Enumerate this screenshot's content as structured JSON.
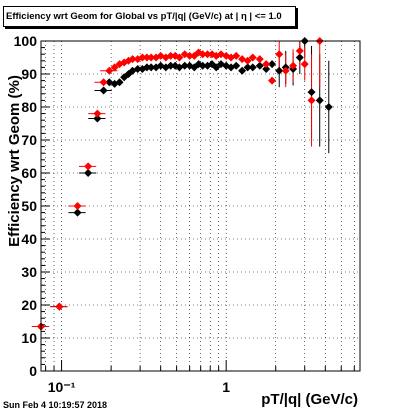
{
  "chart_data": {
    "type": "scatter",
    "title": "Efficiency wrt Geom for Global vs pT/|q| (GeV/c) at | η | <= 1.0",
    "xlabel": "pT/|q| (GeV/c)",
    "ylabel": "Efficiency wrt Geom (%)",
    "xscale": "log",
    "xlim": [
      0.075,
      6.5
    ],
    "ylim": [
      0,
      100
    ],
    "x_tick_labels": [
      "10⁻¹",
      "1"
    ],
    "y_tick_labels": [
      "0",
      "10",
      "20",
      "30",
      "40",
      "50",
      "60",
      "70",
      "80",
      "90",
      "100"
    ],
    "grid": true,
    "series": [
      {
        "color": "#000000",
        "marker": "diamond",
        "points": [
          [
            0.075,
            13.5
          ],
          [
            0.097,
            19.5
          ],
          [
            0.125,
            48
          ],
          [
            0.145,
            60
          ],
          [
            0.165,
            76.5
          ],
          [
            0.18,
            85
          ],
          [
            0.195,
            87.5
          ],
          [
            0.21,
            87
          ],
          [
            0.225,
            87.5
          ],
          [
            0.24,
            89
          ],
          [
            0.255,
            90
          ],
          [
            0.27,
            91
          ],
          [
            0.29,
            91.5
          ],
          [
            0.31,
            91.5
          ],
          [
            0.33,
            92
          ],
          [
            0.35,
            92
          ],
          [
            0.375,
            92
          ],
          [
            0.4,
            92.5
          ],
          [
            0.43,
            92
          ],
          [
            0.46,
            92.5
          ],
          [
            0.49,
            92.5
          ],
          [
            0.52,
            92
          ],
          [
            0.56,
            92.5
          ],
          [
            0.6,
            92.5
          ],
          [
            0.64,
            92
          ],
          [
            0.68,
            93
          ],
          [
            0.72,
            92.5
          ],
          [
            0.77,
            92.5
          ],
          [
            0.82,
            93
          ],
          [
            0.87,
            92
          ],
          [
            0.93,
            93
          ],
          [
            1.0,
            92.5
          ],
          [
            1.07,
            92
          ],
          [
            1.15,
            92.5
          ],
          [
            1.25,
            91
          ],
          [
            1.35,
            92
          ],
          [
            1.45,
            92
          ],
          [
            1.6,
            92.5
          ],
          [
            1.75,
            91.5
          ],
          [
            1.9,
            93
          ],
          [
            2.1,
            91
          ],
          [
            2.3,
            92
          ],
          [
            2.55,
            91.5
          ],
          [
            2.8,
            95
          ],
          [
            3.0,
            100
          ],
          [
            3.3,
            84.5
          ],
          [
            3.7,
            82
          ],
          [
            4.2,
            80
          ]
        ]
      },
      {
        "color": "#ff0000",
        "marker": "diamond",
        "points": [
          [
            0.075,
            13.5
          ],
          [
            0.097,
            19.5
          ],
          [
            0.125,
            50
          ],
          [
            0.145,
            62
          ],
          [
            0.165,
            78
          ],
          [
            0.18,
            87.5
          ],
          [
            0.195,
            91
          ],
          [
            0.21,
            92
          ],
          [
            0.225,
            93
          ],
          [
            0.24,
            93.5
          ],
          [
            0.255,
            94
          ],
          [
            0.27,
            94.5
          ],
          [
            0.29,
            94.5
          ],
          [
            0.31,
            95
          ],
          [
            0.33,
            95
          ],
          [
            0.35,
            95
          ],
          [
            0.375,
            95
          ],
          [
            0.4,
            95.5
          ],
          [
            0.43,
            95
          ],
          [
            0.46,
            95.5
          ],
          [
            0.49,
            95.5
          ],
          [
            0.52,
            95
          ],
          [
            0.56,
            96
          ],
          [
            0.6,
            95.5
          ],
          [
            0.64,
            95.5
          ],
          [
            0.68,
            96.5
          ],
          [
            0.72,
            96
          ],
          [
            0.77,
            96
          ],
          [
            0.82,
            96
          ],
          [
            0.87,
            95.5
          ],
          [
            0.93,
            96
          ],
          [
            1.0,
            95.5
          ],
          [
            1.07,
            95
          ],
          [
            1.15,
            95.5
          ],
          [
            1.25,
            94.5
          ],
          [
            1.35,
            94
          ],
          [
            1.45,
            95
          ],
          [
            1.6,
            94.5
          ],
          [
            1.75,
            93
          ],
          [
            1.9,
            88
          ],
          [
            2.1,
            96
          ],
          [
            2.3,
            91
          ],
          [
            2.55,
            92.5
          ],
          [
            2.8,
            97
          ],
          [
            3.0,
            93
          ],
          [
            3.3,
            82
          ],
          [
            3.7,
            100
          ]
        ]
      }
    ]
  },
  "footer": "Sun Feb  4 10:19:57 2018"
}
